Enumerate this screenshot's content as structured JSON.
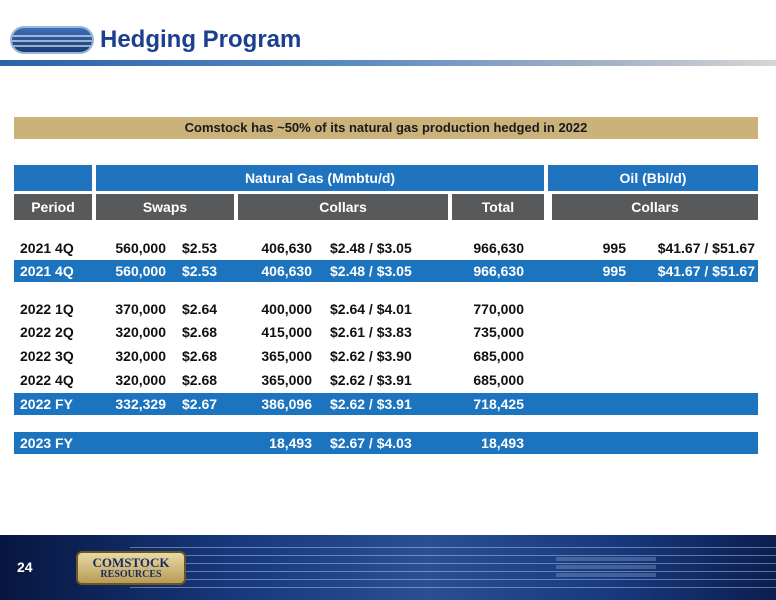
{
  "header": {
    "title": "Hedging Program"
  },
  "banner": "Comstock has ~50% of its natural gas production hedged in 2022",
  "table": {
    "group_headers": {
      "natural_gas": "Natural Gas (Mmbtu/d)",
      "oil": "Oil (Bbl/d)"
    },
    "column_headers": {
      "period": "Period",
      "swaps": "Swaps",
      "collars": "Collars",
      "total": "Total",
      "oil_collars": "Collars"
    },
    "rows": [
      {
        "period": "2021 4Q",
        "swap_volume": "560,000",
        "swap_price": "$2.53",
        "collar_volume": "406,630",
        "collar_price": "$2.48 / $3.05",
        "total": "966,630",
        "oil_volume": "995",
        "oil_price": "$41.67 / $51.67",
        "highlight": false
      },
      {
        "period": "2021 4Q",
        "swap_volume": "560,000",
        "swap_price": "$2.53",
        "collar_volume": "406,630",
        "collar_price": "$2.48 / $3.05",
        "total": "966,630",
        "oil_volume": "995",
        "oil_price": "$41.67 / $51.67",
        "highlight": true
      },
      {
        "period": "2022 1Q",
        "swap_volume": "370,000",
        "swap_price": "$2.64",
        "collar_volume": "400,000",
        "collar_price": "$2.64 / $4.01",
        "total": "770,000",
        "oil_volume": "",
        "oil_price": "",
        "highlight": false
      },
      {
        "period": "2022 2Q",
        "swap_volume": "320,000",
        "swap_price": "$2.68",
        "collar_volume": "415,000",
        "collar_price": "$2.61 / $3.83",
        "total": "735,000",
        "oil_volume": "",
        "oil_price": "",
        "highlight": false
      },
      {
        "period": "2022 3Q",
        "swap_volume": "320,000",
        "swap_price": "$2.68",
        "collar_volume": "365,000",
        "collar_price": "$2.62 / $3.90",
        "total": "685,000",
        "oil_volume": "",
        "oil_price": "",
        "highlight": false
      },
      {
        "period": "2022 4Q",
        "swap_volume": "320,000",
        "swap_price": "$2.68",
        "collar_volume": "365,000",
        "collar_price": "$2.62 / $3.91",
        "total": "685,000",
        "oil_volume": "",
        "oil_price": "",
        "highlight": false
      },
      {
        "period": "2022 FY",
        "swap_volume": "332,329",
        "swap_price": "$2.67",
        "collar_volume": "386,096",
        "collar_price": "$2.62 / $3.91",
        "total": "718,425",
        "oil_volume": "",
        "oil_price": "",
        "highlight": true
      },
      {
        "period": "2023 FY",
        "swap_volume": "",
        "swap_price": "",
        "collar_volume": "18,493",
        "collar_price": "$2.67 / $4.03",
        "total": "18,493",
        "oil_volume": "",
        "oil_price": "",
        "highlight": true
      }
    ]
  },
  "footer": {
    "page_number": "24",
    "logo_text_top": "COMSTOCK",
    "logo_text_bottom": "RESOURCES"
  },
  "colors": {
    "title": "#1c3f8f",
    "banner": "#cbb17a",
    "header_blue": "#1f73bf",
    "header_gray": "#58595b",
    "row_highlight": "#1b74bd",
    "footer": "#17387c"
  }
}
